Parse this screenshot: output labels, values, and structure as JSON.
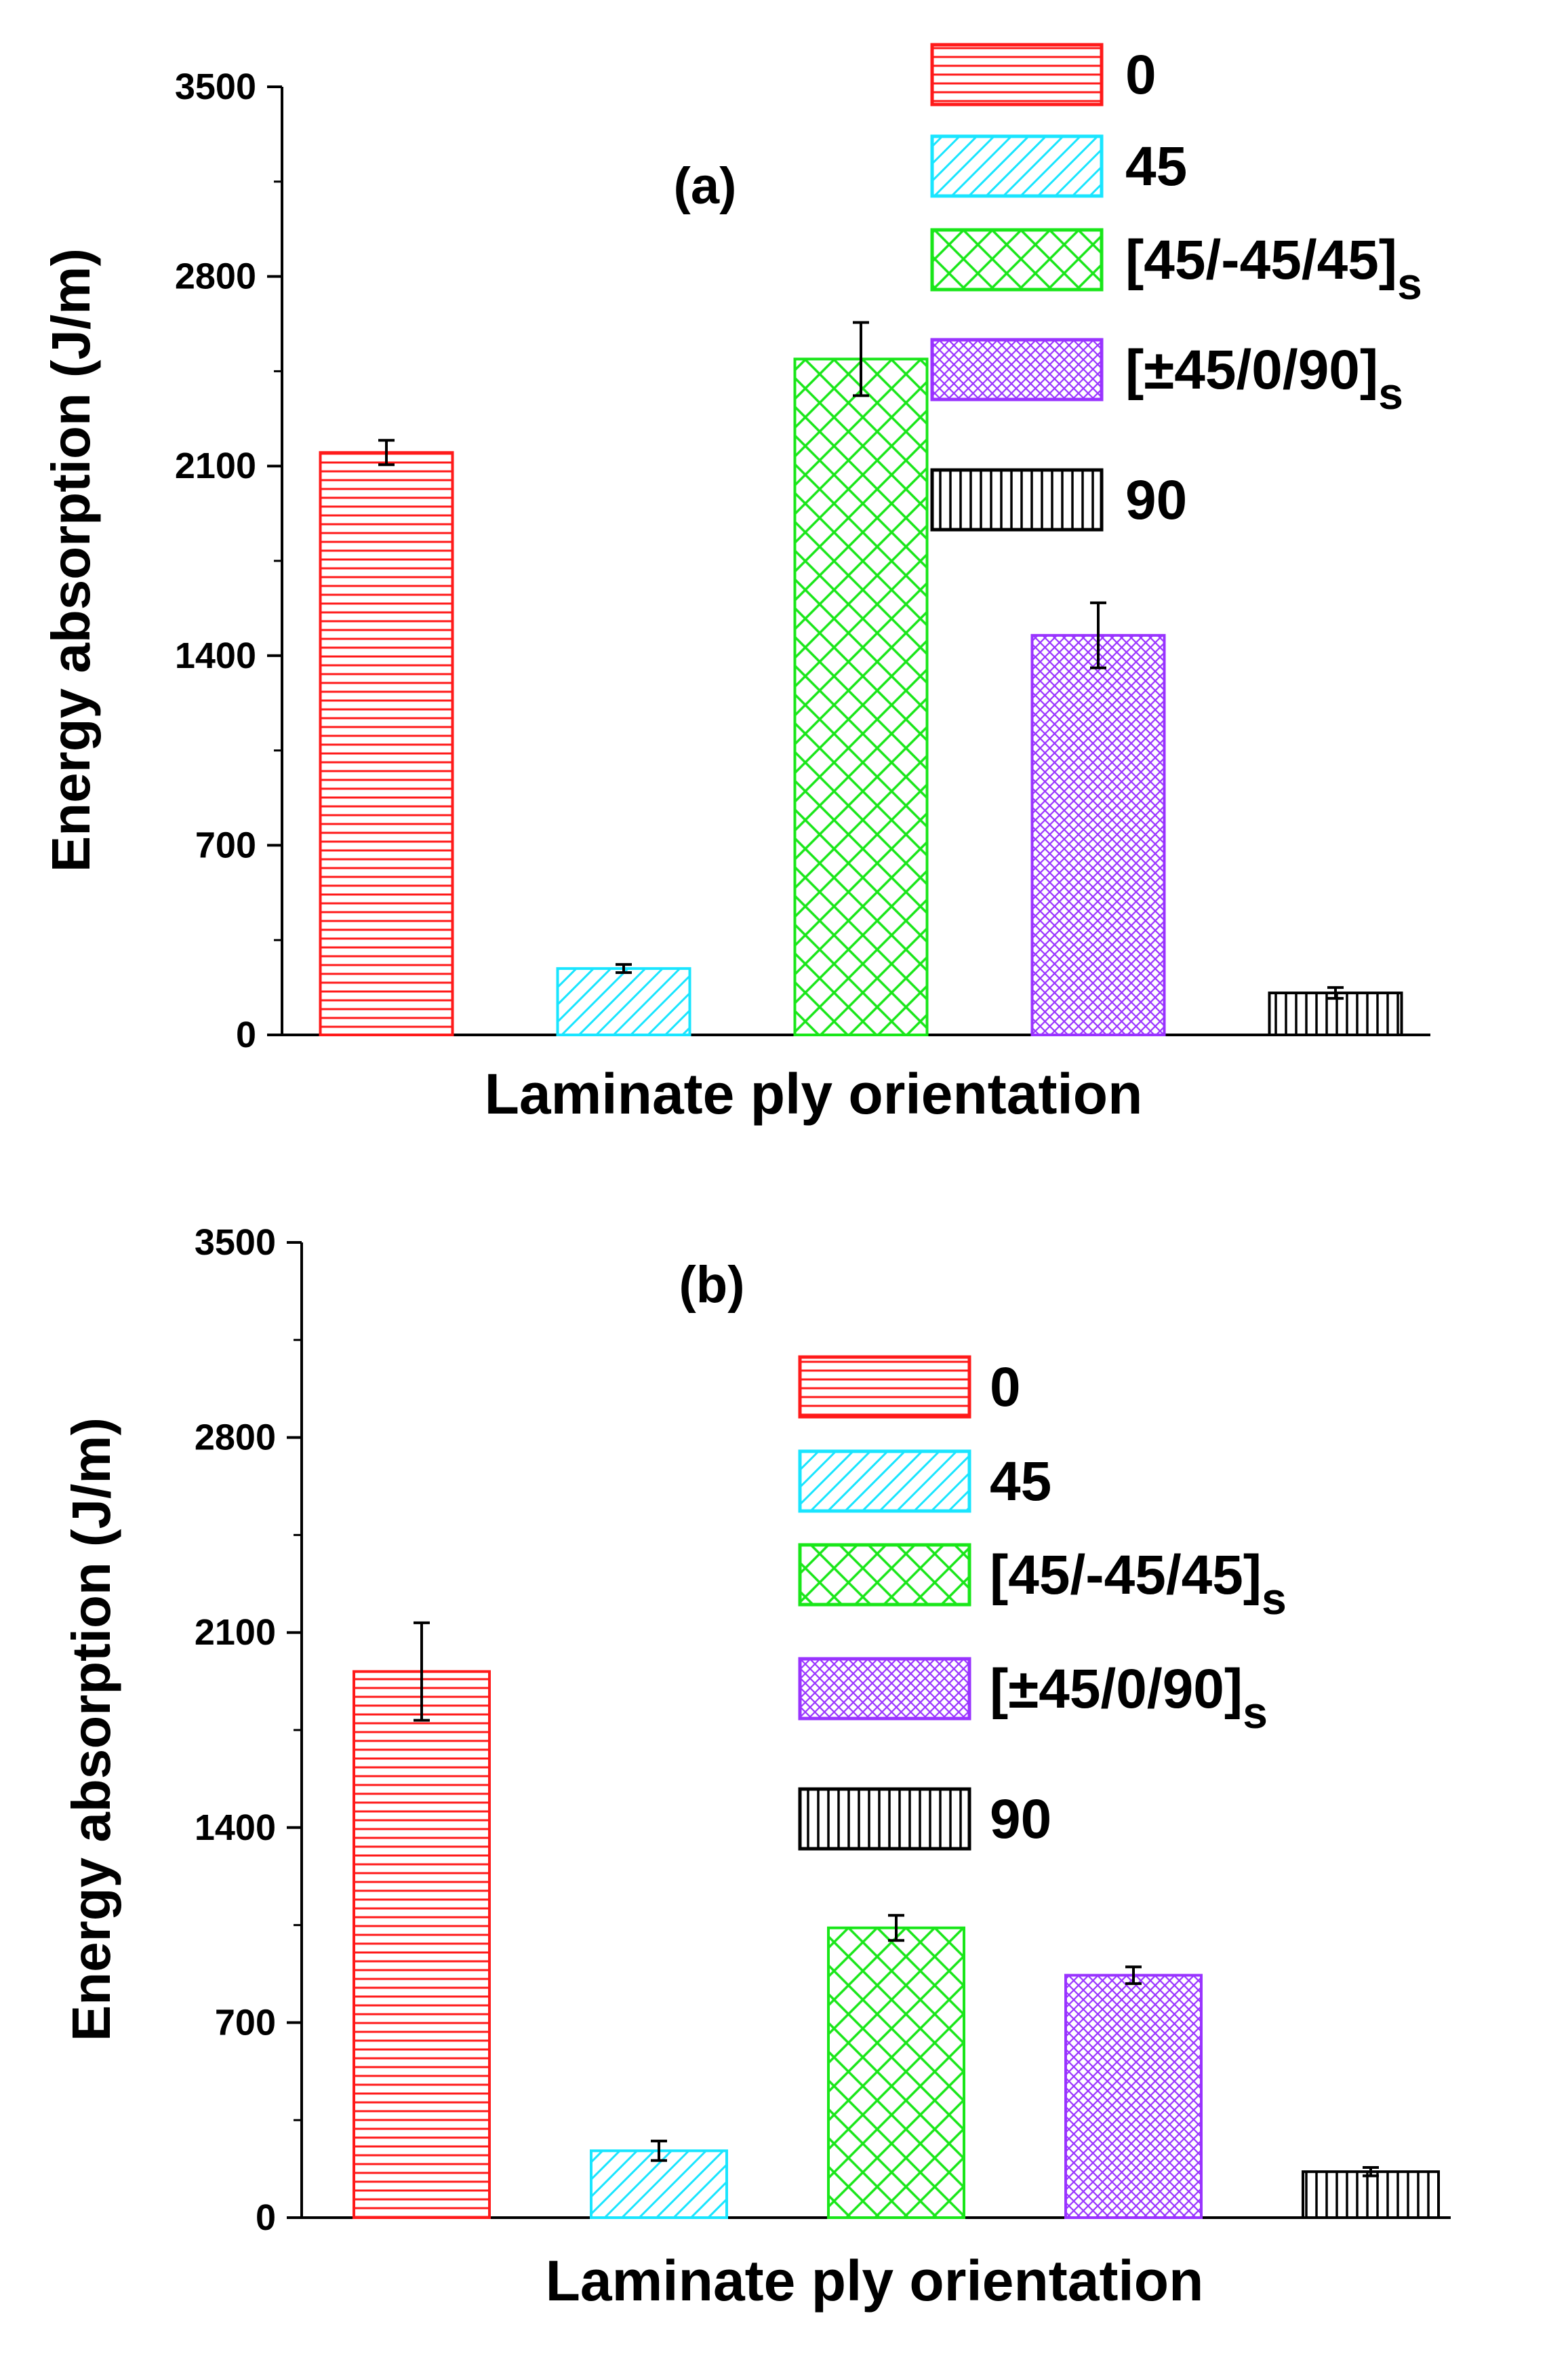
{
  "chart_data": [
    {
      "type": "bar",
      "panel_label": "(a)",
      "title": "",
      "xlabel": "Laminate ply orientation",
      "ylabel": "Energy absorption (J/m)",
      "ylim": [
        0,
        3500
      ],
      "yticks": [
        "0",
        "700",
        "1400",
        "2100",
        "2800",
        "3500"
      ],
      "grid": false,
      "legend_position": "top-right",
      "series": [
        {
          "legend": "0",
          "legend_sub": "",
          "color": "#ff1a1a",
          "pattern": "horizontal",
          "value": 2150,
          "error": 45
        },
        {
          "legend": "45",
          "legend_sub": "",
          "color": "#19e5ff",
          "pattern": "diagonal",
          "value": 245,
          "error": 15
        },
        {
          "legend": "[45/-45/45]",
          "legend_sub": "s",
          "color": "#19e619",
          "pattern": "crosshatch",
          "value": 2495,
          "error": 135
        },
        {
          "legend": "[±45/0/90]",
          "legend_sub": "s",
          "color": "#9933ff",
          "pattern": "finecross",
          "value": 1475,
          "error": 120
        },
        {
          "legend": "90",
          "legend_sub": "",
          "color": "#000000",
          "pattern": "vertical",
          "value": 155,
          "error": 20
        }
      ]
    },
    {
      "type": "bar",
      "panel_label": "(b)",
      "title": "",
      "xlabel": "Laminate ply orientation",
      "ylabel": "Energy absorption (J/m)",
      "ylim": [
        0,
        3500
      ],
      "yticks": [
        "0",
        "700",
        "1400",
        "2100",
        "2800",
        "3500"
      ],
      "grid": false,
      "legend_position": "top-right",
      "series": [
        {
          "legend": "0",
          "legend_sub": "",
          "color": "#ff1a1a",
          "pattern": "horizontal",
          "value": 1960,
          "error": 175
        },
        {
          "legend": "45",
          "legend_sub": "",
          "color": "#19e5ff",
          "pattern": "diagonal",
          "value": 240,
          "error": 35
        },
        {
          "legend": "[45/-45/45]",
          "legend_sub": "s",
          "color": "#19e619",
          "pattern": "crosshatch",
          "value": 1040,
          "error": 45
        },
        {
          "legend": "[±45/0/90]",
          "legend_sub": "s",
          "color": "#9933ff",
          "pattern": "finecross",
          "value": 870,
          "error": 30
        },
        {
          "legend": "90",
          "legend_sub": "",
          "color": "#000000",
          "pattern": "vertical",
          "value": 165,
          "error": 15
        }
      ]
    }
  ]
}
